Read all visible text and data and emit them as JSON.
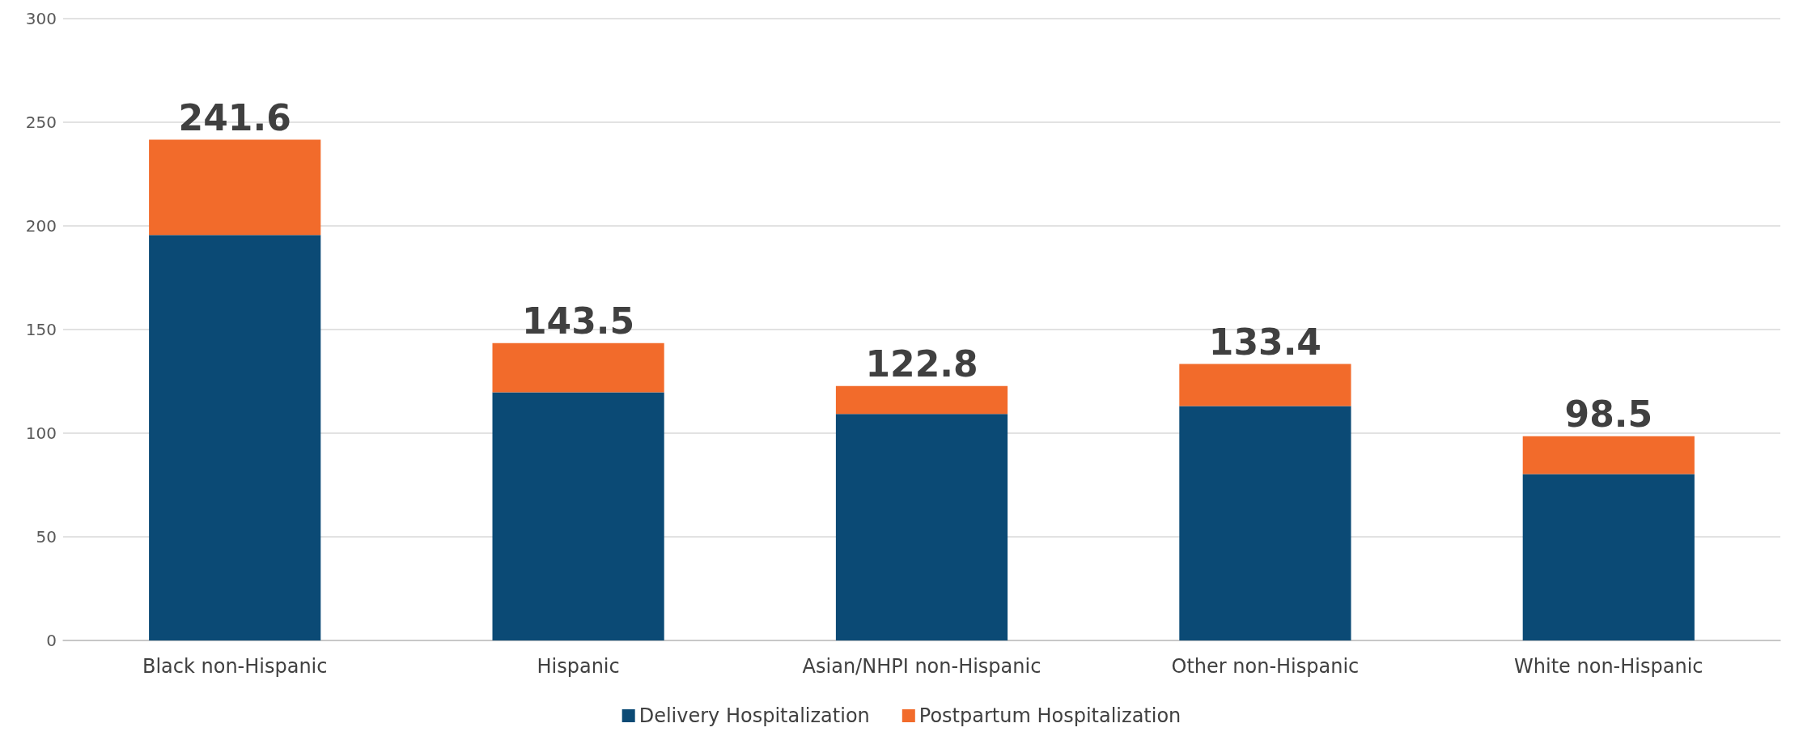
{
  "chart_data": {
    "type": "bar",
    "stacked": true,
    "categories": [
      "Black non-Hispanic",
      "Hispanic",
      "Asian/NHPI non-Hispanic",
      "Other non-Hispanic",
      "White non-Hispanic"
    ],
    "series": [
      {
        "name": "Delivery Hospitalization",
        "color": "#0b4a75",
        "values": [
          195.6,
          119.7,
          109.3,
          113.1,
          80.3
        ]
      },
      {
        "name": "Postpartum Hospitalization",
        "color": "#f26b2b",
        "values": [
          46.0,
          23.8,
          13.5,
          20.3,
          18.2
        ]
      }
    ],
    "totals": [
      "241.6",
      "143.5",
      "122.8",
      "133.4",
      "98.5"
    ],
    "ylim": [
      0,
      300
    ],
    "yticks": [
      0,
      50,
      100,
      150,
      200,
      250,
      300
    ],
    "grid": "y",
    "legend": "bottom"
  }
}
